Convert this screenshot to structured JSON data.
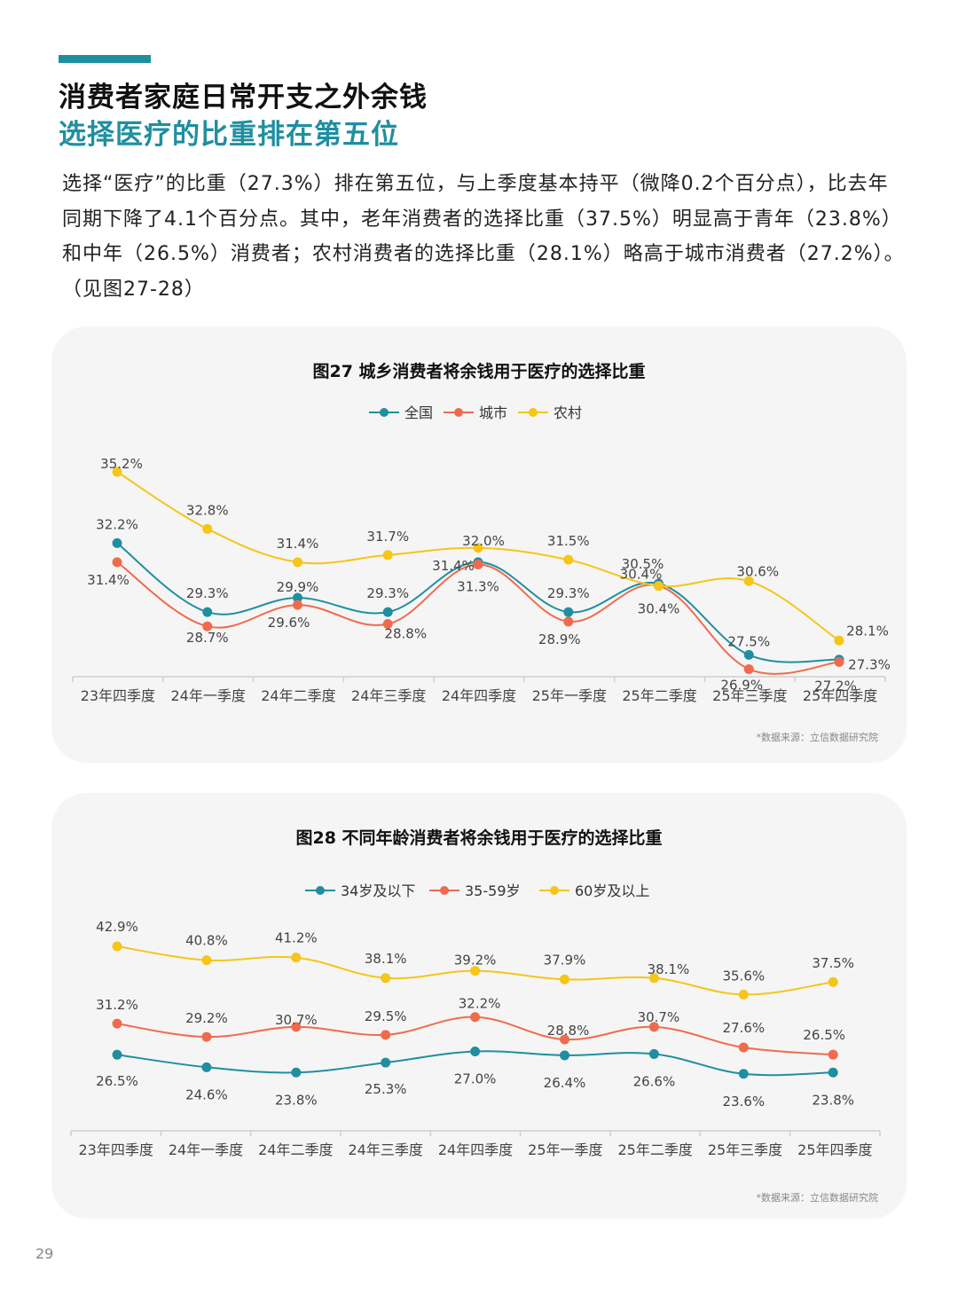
{
  "header": {
    "title_line1": "消费者家庭日常开支之外余钱",
    "title_line2": "选择医疗的比重排在第五位"
  },
  "body": {
    "paragraph": "选择“医疗”的比重（27.3%）排在第五位，与上季度基本持平（微降0.2个百分点），比去年同期下降了4.1个百分点。其中，老年消费者的选择比重（37.5%）明显高于青年（23.8%）和中年（26.5%）消费者；农村消费者的选择比重（28.1%）略高于城市消费者（27.2%）。（见图27-28）"
  },
  "page_number": "29",
  "chart_data": [
    {
      "type": "line",
      "title": "图27 城乡消费者将余钱用于医疗的选择比重",
      "categories": [
        "23年四季度",
        "24年一季度",
        "24年二季度",
        "24年三季度",
        "24年四季度",
        "25年一季度",
        "25年二季度",
        "25年三季度",
        "25年四季度"
      ],
      "series": [
        {
          "name": "全国",
          "color": "#1f8fa0",
          "values": [
            32.2,
            29.3,
            29.9,
            29.3,
            31.4,
            29.3,
            30.5,
            27.5,
            27.3
          ]
        },
        {
          "name": "城市",
          "color": "#ef6b4d",
          "values": [
            31.4,
            28.7,
            29.6,
            28.8,
            31.3,
            28.9,
            30.4,
            26.9,
            27.2
          ]
        },
        {
          "name": "农村",
          "color": "#f5c518",
          "values": [
            35.2,
            32.8,
            31.4,
            31.7,
            32.0,
            31.5,
            30.4,
            30.6,
            28.1
          ]
        }
      ],
      "ylim": [
        24,
        36
      ],
      "legend_position": "top",
      "grid": false,
      "source": "*数据来源：立信数据研究院"
    },
    {
      "type": "line",
      "title": "图28 不同年龄消费者将余钱用于医疗的选择比重",
      "categories": [
        "23年四季度",
        "24年一季度",
        "24年二季度",
        "24年三季度",
        "24年四季度",
        "25年一季度",
        "25年二季度",
        "25年三季度",
        "25年四季度"
      ],
      "series": [
        {
          "name": "34岁及以下",
          "color": "#1f8fa0",
          "values": [
            26.5,
            24.6,
            23.8,
            25.3,
            27.0,
            26.4,
            26.6,
            23.6,
            23.8
          ]
        },
        {
          "name": "35-59岁",
          "color": "#ef6b4d",
          "values": [
            31.2,
            29.2,
            30.7,
            29.5,
            32.2,
            28.8,
            30.7,
            27.6,
            26.5
          ]
        },
        {
          "name": "60岁及以上",
          "color": "#f5c518",
          "values": [
            42.9,
            40.8,
            41.2,
            38.1,
            39.2,
            37.9,
            38.1,
            35.6,
            37.5
          ]
        }
      ],
      "ylim": [
        15,
        45
      ],
      "legend_position": "top",
      "grid": false,
      "source": "*数据来源：立信数据研究院"
    }
  ]
}
